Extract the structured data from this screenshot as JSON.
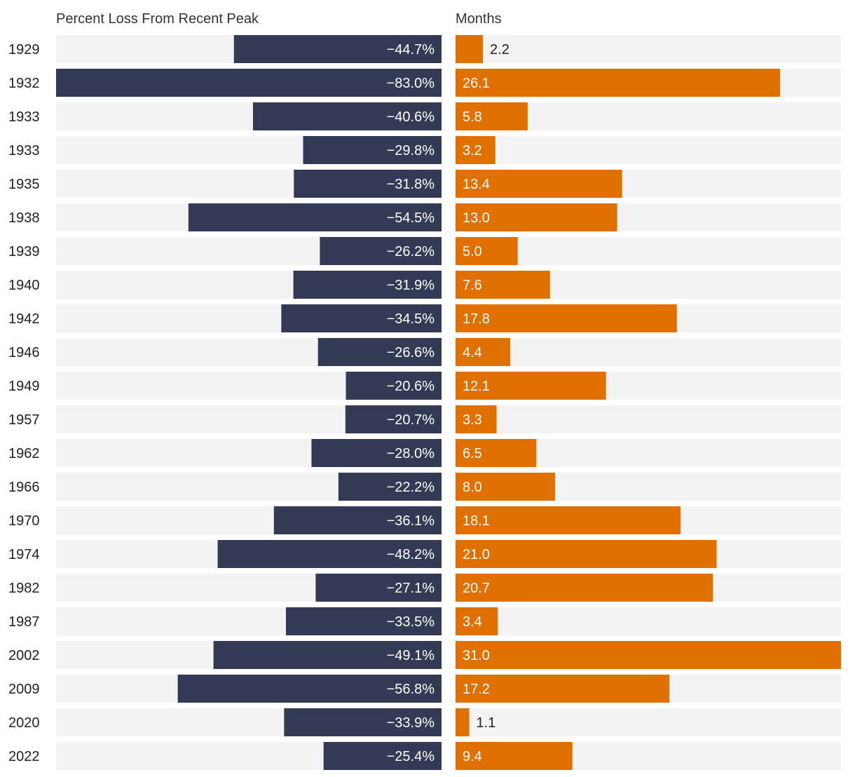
{
  "colors": {
    "loss_bar": "#323a56",
    "months_bar": "#e07000",
    "track": "#f3f3f3",
    "label_inside": "#ffffff",
    "label_outside": "#222222"
  },
  "chart_data": {
    "type": "bar",
    "orientation": "horizontal",
    "panels": [
      {
        "key": "loss",
        "title": "Percent Loss From Recent Peak",
        "xlim": [
          -83.0,
          0
        ],
        "unit": "%"
      },
      {
        "key": "months",
        "title": "Months",
        "xlim": [
          0,
          31.0
        ],
        "unit": ""
      }
    ],
    "categories": [
      "1929",
      "1932",
      "1933",
      "1933",
      "1935",
      "1938",
      "1939",
      "1940",
      "1942",
      "1946",
      "1949",
      "1957",
      "1962",
      "1966",
      "1970",
      "1974",
      "1982",
      "1987",
      "2002",
      "2009",
      "2020",
      "2022"
    ],
    "series": [
      {
        "name": "Percent Loss From Recent Peak",
        "values": [
          -44.7,
          -83.0,
          -40.6,
          -29.8,
          -31.8,
          -54.5,
          -26.2,
          -31.9,
          -34.5,
          -26.6,
          -20.6,
          -20.7,
          -28.0,
          -22.2,
          -36.1,
          -48.2,
          -27.1,
          -33.5,
          -49.1,
          -56.8,
          -33.9,
          -25.4
        ],
        "labels": [
          "−44.7%",
          "−83.0%",
          "−40.6%",
          "−29.8%",
          "−31.8%",
          "−54.5%",
          "−26.2%",
          "−31.9%",
          "−34.5%",
          "−26.6%",
          "−20.6%",
          "−20.7%",
          "−28.0%",
          "−22.2%",
          "−36.1%",
          "−48.2%",
          "−27.1%",
          "−33.5%",
          "−49.1%",
          "−56.8%",
          "−33.9%",
          "−25.4%"
        ]
      },
      {
        "name": "Months",
        "values": [
          2.2,
          26.1,
          5.8,
          3.2,
          13.4,
          13.0,
          5.0,
          7.6,
          17.8,
          4.4,
          12.1,
          3.3,
          6.5,
          8.0,
          18.1,
          21.0,
          20.7,
          3.4,
          31.0,
          17.2,
          1.1,
          9.4
        ],
        "labels": [
          "2.2",
          "26.1",
          "5.8",
          "3.2",
          "13.4",
          "13.0",
          "5.0",
          "7.6",
          "17.8",
          "4.4",
          "12.1",
          "3.3",
          "6.5",
          "8.0",
          "18.1",
          "21.0",
          "20.7",
          "3.4",
          "31.0",
          "17.2",
          "1.1",
          "9.4"
        ]
      }
    ],
    "grid": false,
    "legend": "none"
  }
}
